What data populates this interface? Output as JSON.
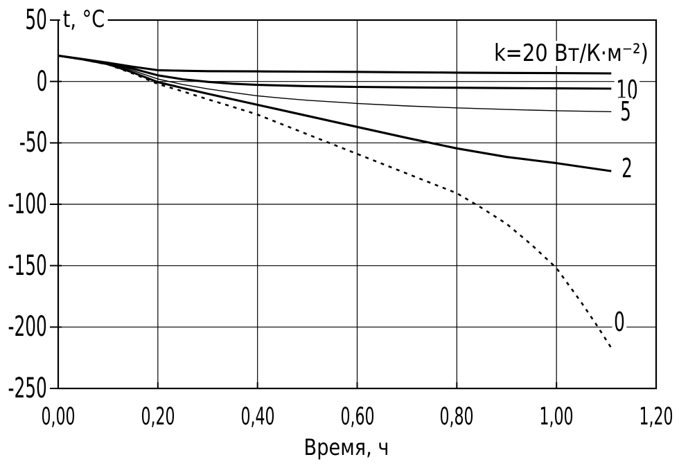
{
  "chart_data": {
    "type": "line",
    "title": "",
    "xlabel": "Время, ч",
    "ylabel": "t, °C",
    "xlim": [
      0,
      1.2
    ],
    "ylim": [
      -250,
      50
    ],
    "grid": true,
    "colors": {
      "background": "#ffffff",
      "foreground": "#000000"
    },
    "x_ticks": {
      "values": [
        0,
        0.2,
        0.4,
        0.6,
        0.8,
        1.0,
        1.2
      ],
      "labels": [
        "0,00",
        "0,20",
        "0,40",
        "0,60",
        "0,80",
        "1,00",
        "1,20"
      ]
    },
    "y_ticks": {
      "values": [
        50,
        0,
        -50,
        -100,
        -150,
        -200,
        -250
      ],
      "labels": [
        "50",
        "0",
        "-50",
        "-100",
        "-150",
        "-200",
        "-250"
      ]
    },
    "series": [
      {
        "name": "k20",
        "k_value": 20,
        "style": "solid",
        "width": 3.1,
        "points": [
          [
            0,
            21
          ],
          [
            0.05,
            18.2
          ],
          [
            0.1,
            15.2
          ],
          [
            0.15,
            12
          ],
          [
            0.2,
            9.2
          ],
          [
            0.25,
            8.7
          ],
          [
            0.3,
            8.4
          ],
          [
            0.4,
            8.2
          ],
          [
            0.5,
            8.0
          ],
          [
            0.6,
            7.8
          ],
          [
            0.7,
            7.5
          ],
          [
            0.8,
            7.2
          ],
          [
            0.9,
            7.0
          ],
          [
            1.0,
            6.8
          ],
          [
            1.11,
            6.6
          ]
        ]
      },
      {
        "name": "k10",
        "k_value": 10,
        "style": "solid",
        "width": 3.1,
        "points": [
          [
            0,
            21
          ],
          [
            0.05,
            18.1
          ],
          [
            0.1,
            14.9
          ],
          [
            0.15,
            10.4
          ],
          [
            0.2,
            5
          ],
          [
            0.25,
            1.8
          ],
          [
            0.3,
            -0.3
          ],
          [
            0.35,
            -1.8
          ],
          [
            0.4,
            -2.8
          ],
          [
            0.5,
            -3.8
          ],
          [
            0.6,
            -4.4
          ],
          [
            0.7,
            -4.8
          ],
          [
            0.8,
            -5.1
          ],
          [
            0.9,
            -5.4
          ],
          [
            1.0,
            -5.6
          ],
          [
            1.11,
            -5.8
          ]
        ]
      },
      {
        "name": "k5",
        "k_value": 5,
        "style": "solid",
        "width": 1.4,
        "points": [
          [
            0,
            21
          ],
          [
            0.05,
            18
          ],
          [
            0.1,
            14.5
          ],
          [
            0.15,
            8.9
          ],
          [
            0.2,
            2
          ],
          [
            0.25,
            -2.5
          ],
          [
            0.3,
            -6
          ],
          [
            0.35,
            -9
          ],
          [
            0.4,
            -11.7
          ],
          [
            0.45,
            -13.6
          ],
          [
            0.5,
            -15.3
          ],
          [
            0.6,
            -17.9
          ],
          [
            0.7,
            -19.9
          ],
          [
            0.8,
            -21.5
          ],
          [
            0.9,
            -22.8
          ],
          [
            1.0,
            -23.8
          ],
          [
            1.11,
            -24.6
          ]
        ]
      },
      {
        "name": "k2",
        "k_value": 2,
        "style": "solid",
        "width": 3.1,
        "points": [
          [
            0,
            21
          ],
          [
            0.05,
            17.9
          ],
          [
            0.1,
            14.1
          ],
          [
            0.15,
            7.3
          ],
          [
            0.2,
            -0.5
          ],
          [
            0.25,
            -5.3
          ],
          [
            0.3,
            -10
          ],
          [
            0.35,
            -14.5
          ],
          [
            0.4,
            -19
          ],
          [
            0.45,
            -23.5
          ],
          [
            0.5,
            -28
          ],
          [
            0.6,
            -37
          ],
          [
            0.7,
            -46
          ],
          [
            0.8,
            -54.5
          ],
          [
            0.9,
            -61.5
          ],
          [
            1.0,
            -66.5
          ],
          [
            1.05,
            -69.5
          ],
          [
            1.11,
            -73
          ]
        ]
      },
      {
        "name": "k0",
        "k_value": 0,
        "style": "dotted",
        "width": 2.6,
        "points": [
          [
            0,
            21
          ],
          [
            0.05,
            17.8
          ],
          [
            0.1,
            13.8
          ],
          [
            0.15,
            6.5
          ],
          [
            0.2,
            -2
          ],
          [
            0.25,
            -8
          ],
          [
            0.3,
            -14.5
          ],
          [
            0.35,
            -20.6
          ],
          [
            0.4,
            -27
          ],
          [
            0.45,
            -35
          ],
          [
            0.5,
            -43
          ],
          [
            0.55,
            -51
          ],
          [
            0.6,
            -59
          ],
          [
            0.65,
            -67
          ],
          [
            0.7,
            -75
          ],
          [
            0.75,
            -83
          ],
          [
            0.8,
            -91
          ],
          [
            0.85,
            -103
          ],
          [
            0.9,
            -116
          ],
          [
            0.95,
            -133
          ],
          [
            1.0,
            -152
          ],
          [
            1.05,
            -180
          ],
          [
            1.08,
            -198
          ],
          [
            1.11,
            -217
          ]
        ]
      }
    ],
    "annotations": [
      {
        "text": "k=20 Вт/К·м⁻²)",
        "series": "k20",
        "x": 1.189,
        "y": 23,
        "align": "right"
      },
      {
        "text": "10",
        "series": "k10",
        "x": 1.142,
        "y": -7,
        "align": "center"
      },
      {
        "text": "5",
        "series": "k5",
        "x": 1.139,
        "y": -24.4,
        "align": "center"
      },
      {
        "text": "2",
        "series": "k2",
        "x": 1.142,
        "y": -70.7,
        "align": "center"
      },
      {
        "text": "0",
        "series": "k0",
        "x": 1.126,
        "y": -196,
        "align": "center"
      }
    ]
  }
}
